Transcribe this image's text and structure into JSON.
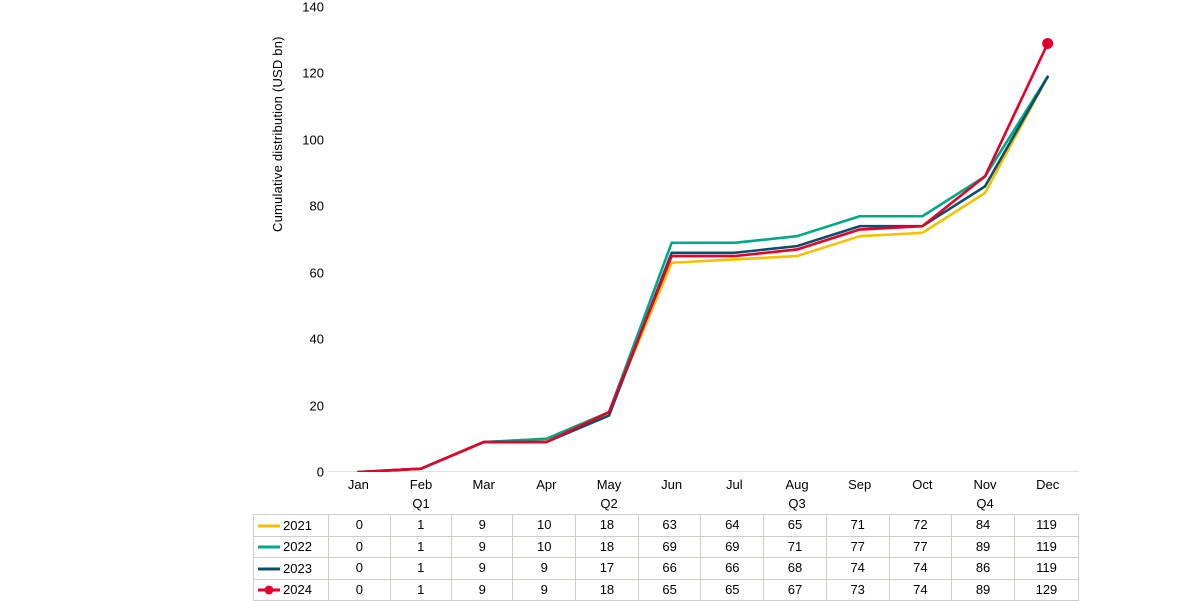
{
  "chart": {
    "type": "line",
    "y_axis_label": "Cumulative distribution (USD bn)",
    "background_color": "#ffffff",
    "axis_color": "#c7c2bb",
    "table_border_color": "#d0ccc6",
    "tick_font_size": 13,
    "line_width": 2.6,
    "marker_radius": 5.5,
    "ylim": [
      0,
      140
    ],
    "ytick_step": 20,
    "yticks": [
      0,
      20,
      40,
      60,
      80,
      100,
      120,
      140
    ],
    "months": [
      "Jan",
      "Feb",
      "Mar",
      "Apr",
      "May",
      "Jun",
      "Jul",
      "Aug",
      "Sep",
      "Oct",
      "Nov",
      "Dec"
    ],
    "quarters": [
      {
        "label": "Q1",
        "span": [
          0,
          2
        ]
      },
      {
        "label": "Q2",
        "span": [
          3,
          5
        ]
      },
      {
        "label": "Q3",
        "span": [
          6,
          8
        ]
      },
      {
        "label": "Q4",
        "span": [
          9,
          11
        ]
      }
    ],
    "series": [
      {
        "name": "2021",
        "color": "#f2c200",
        "has_end_marker": false,
        "values": [
          0,
          1,
          9,
          10,
          18,
          63,
          64,
          65,
          71,
          72,
          84,
          119
        ]
      },
      {
        "name": "2022",
        "color": "#00a887",
        "has_end_marker": false,
        "values": [
          0,
          1,
          9,
          10,
          18,
          69,
          69,
          71,
          77,
          77,
          89,
          119
        ]
      },
      {
        "name": "2023",
        "color": "#0c4f6b",
        "has_end_marker": false,
        "values": [
          0,
          1,
          9,
          9,
          17,
          66,
          66,
          68,
          74,
          74,
          86,
          119
        ]
      },
      {
        "name": "2024",
        "color": "#e4002b",
        "has_end_marker": true,
        "values": [
          0,
          1,
          9,
          9,
          18,
          65,
          65,
          67,
          73,
          74,
          89,
          129
        ]
      }
    ]
  }
}
